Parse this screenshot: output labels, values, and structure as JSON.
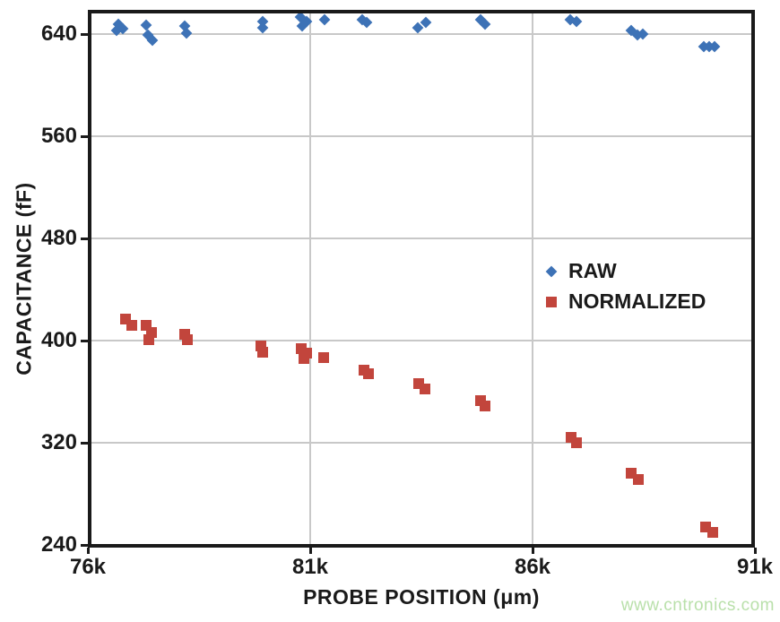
{
  "watermark": {
    "text": "www.cntronics.com",
    "color": "#B9E0AA"
  },
  "chart_data": {
    "type": "scatter",
    "title": "",
    "xlabel": "PROBE POSITION (μm)",
    "ylabel": "CAPACITANCE (fF)",
    "xlim": [
      76000,
      91000
    ],
    "ylim": [
      240,
      656
    ],
    "grid": true,
    "grid_color": "#C8C8C8",
    "frame_color": "#1A1A1A",
    "legend_position": "inside-right-middle",
    "x_ticks": [
      {
        "value": 76000,
        "label": "76k"
      },
      {
        "value": 81000,
        "label": "81k"
      },
      {
        "value": 86000,
        "label": "86k"
      },
      {
        "value": 91000,
        "label": "91k"
      }
    ],
    "y_ticks": [
      {
        "value": 640,
        "label": "640"
      },
      {
        "value": 560,
        "label": "560"
      },
      {
        "value": 480,
        "label": "480"
      },
      {
        "value": 400,
        "label": "400"
      },
      {
        "value": 320,
        "label": "320"
      },
      {
        "value": 240,
        "label": "240"
      }
    ],
    "series": [
      {
        "name": "RAW",
        "marker": "diamond",
        "color": "#3D72B6",
        "points": [
          [
            76690,
            648
          ],
          [
            76790,
            644
          ],
          [
            76640,
            643
          ],
          [
            77310,
            647
          ],
          [
            77360,
            639
          ],
          [
            77450,
            635
          ],
          [
            78180,
            646
          ],
          [
            78210,
            641
          ],
          [
            79930,
            650
          ],
          [
            79930,
            645
          ],
          [
            80780,
            653
          ],
          [
            80920,
            650
          ],
          [
            80820,
            646
          ],
          [
            81320,
            651
          ],
          [
            82170,
            651
          ],
          [
            82280,
            649
          ],
          [
            83420,
            645
          ],
          [
            83600,
            649
          ],
          [
            84830,
            651
          ],
          [
            84930,
            648
          ],
          [
            86850,
            651
          ],
          [
            86990,
            650
          ],
          [
            88220,
            643
          ],
          [
            88360,
            639
          ],
          [
            88480,
            640
          ],
          [
            89850,
            630
          ],
          [
            89970,
            630
          ],
          [
            90090,
            630
          ]
        ]
      },
      {
        "name": "NORMALIZED",
        "marker": "square",
        "color": "#C2453C",
        "points": [
          [
            76850,
            417
          ],
          [
            76990,
            412
          ],
          [
            77310,
            412
          ],
          [
            77430,
            406
          ],
          [
            77370,
            401
          ],
          [
            78180,
            405
          ],
          [
            78240,
            401
          ],
          [
            79890,
            396
          ],
          [
            79930,
            391
          ],
          [
            80800,
            394
          ],
          [
            80920,
            390
          ],
          [
            80860,
            386
          ],
          [
            81300,
            387
          ],
          [
            82210,
            377
          ],
          [
            82310,
            374
          ],
          [
            83440,
            366
          ],
          [
            83580,
            362
          ],
          [
            84830,
            353
          ],
          [
            84930,
            349
          ],
          [
            86870,
            324
          ],
          [
            86990,
            320
          ],
          [
            88220,
            296
          ],
          [
            88380,
            291
          ],
          [
            89890,
            254
          ],
          [
            90050,
            250
          ]
        ]
      }
    ]
  }
}
